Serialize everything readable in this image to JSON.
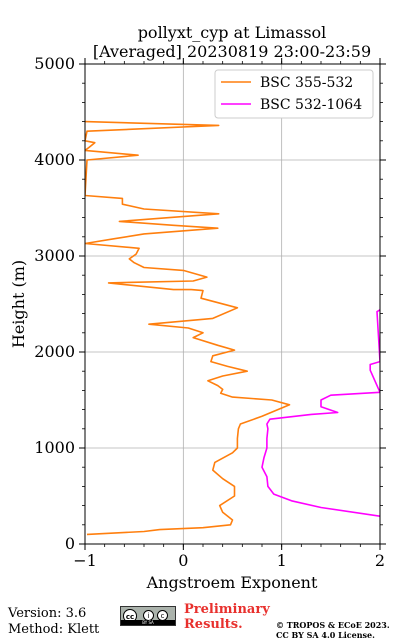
{
  "chart_data": {
    "type": "line",
    "title": "pollyxt_cyp at Limassol",
    "subtitle": "[Averaged] 20230819 23:00-23:59",
    "xlabel": "Angstroem Exponent",
    "ylabel": "Height (m)",
    "xlim": [
      -1,
      2
    ],
    "ylim": [
      0,
      5000
    ],
    "xticks": [
      "−1",
      "0",
      "1",
      "2"
    ],
    "yticks": [
      "0",
      "1000",
      "2000",
      "3000",
      "4000",
      "5000"
    ],
    "grid": true,
    "legend_position": "top-right",
    "series": [
      {
        "name": "BSC 355-532",
        "color": "#ff7f0e",
        "points": [
          [
            -0.98,
            100
          ],
          [
            -0.4,
            130
          ],
          [
            -0.24,
            150
          ],
          [
            0.2,
            170
          ],
          [
            0.48,
            200
          ],
          [
            0.5,
            250
          ],
          [
            0.4,
            330
          ],
          [
            0.37,
            400
          ],
          [
            0.52,
            500
          ],
          [
            0.52,
            600
          ],
          [
            0.4,
            680
          ],
          [
            0.3,
            770
          ],
          [
            0.32,
            850
          ],
          [
            0.5,
            950
          ],
          [
            0.55,
            1000
          ],
          [
            0.55,
            1100
          ],
          [
            0.56,
            1200
          ],
          [
            0.58,
            1250
          ],
          [
            0.8,
            1330
          ],
          [
            1.08,
            1450
          ],
          [
            0.9,
            1500
          ],
          [
            0.5,
            1530
          ],
          [
            0.38,
            1570
          ],
          [
            0.4,
            1610
          ],
          [
            0.35,
            1650
          ],
          [
            0.25,
            1700
          ],
          [
            0.4,
            1750
          ],
          [
            0.65,
            1800
          ],
          [
            0.45,
            1850
          ],
          [
            0.28,
            1900
          ],
          [
            0.3,
            1960
          ],
          [
            0.52,
            2020
          ],
          [
            0.35,
            2070
          ],
          [
            0.1,
            2150
          ],
          [
            0.2,
            2200
          ],
          [
            0.05,
            2250
          ],
          [
            -0.35,
            2290
          ],
          [
            0.3,
            2350
          ],
          [
            0.55,
            2460
          ],
          [
            0.18,
            2560
          ],
          [
            0.2,
            2640
          ],
          [
            0.08,
            2650
          ],
          [
            -0.1,
            2650
          ],
          [
            -0.76,
            2720
          ],
          [
            0.1,
            2740
          ],
          [
            0.24,
            2780
          ],
          [
            0.0,
            2850
          ],
          [
            -0.4,
            2880
          ],
          [
            -0.5,
            2930
          ],
          [
            -0.55,
            2970
          ],
          [
            -0.48,
            3020
          ],
          [
            -0.45,
            3080
          ],
          [
            -1.0,
            3130
          ],
          [
            -0.7,
            3180
          ],
          [
            -0.4,
            3230
          ],
          [
            0.35,
            3290
          ],
          [
            -0.1,
            3320
          ],
          [
            -0.65,
            3360
          ],
          [
            0.36,
            3440
          ],
          [
            -0.4,
            3490
          ],
          [
            -0.62,
            3540
          ],
          [
            -0.62,
            3600
          ],
          [
            -1.0,
            3630
          ],
          [
            -0.98,
            4000
          ],
          [
            -0.46,
            4050
          ],
          [
            -1.0,
            4100
          ],
          [
            -0.96,
            4130
          ],
          [
            -0.9,
            4180
          ],
          [
            -1.0,
            4200
          ],
          [
            -0.98,
            4300
          ],
          [
            0.36,
            4360
          ],
          [
            -1.0,
            4400
          ]
        ]
      },
      {
        "name": "BSC 532-1064",
        "color": "#ff00ff",
        "points": [
          [
            2.0,
            290
          ],
          [
            1.4,
            380
          ],
          [
            1.1,
            450
          ],
          [
            0.92,
            520
          ],
          [
            0.86,
            600
          ],
          [
            0.85,
            700
          ],
          [
            0.8,
            800
          ],
          [
            0.82,
            900
          ],
          [
            0.85,
            1000
          ],
          [
            0.85,
            1100
          ],
          [
            0.86,
            1200
          ],
          [
            0.85,
            1250
          ],
          [
            0.88,
            1300
          ],
          [
            1.3,
            1350
          ],
          [
            1.57,
            1370
          ],
          [
            1.4,
            1430
          ],
          [
            1.4,
            1500
          ],
          [
            1.5,
            1550
          ],
          [
            2.0,
            1580
          ],
          [
            1.9,
            1810
          ],
          [
            1.9,
            1870
          ],
          [
            2.0,
            1900
          ],
          [
            1.97,
            2420
          ],
          [
            2.0,
            2440
          ]
        ]
      }
    ]
  },
  "footer": {
    "version": "Version: 3.6",
    "method": "Method: Klett",
    "license_badge": [
      "cc",
      "by",
      "sa"
    ],
    "license_strip": "BY SA",
    "preliminary_line1": "Preliminary",
    "preliminary_line2": "Results.",
    "preliminary_color": "#e8302d",
    "copyright_line1": "© TROPOS & ECoE 2023.",
    "copyright_line2": "CC BY SA 4.0 License."
  }
}
